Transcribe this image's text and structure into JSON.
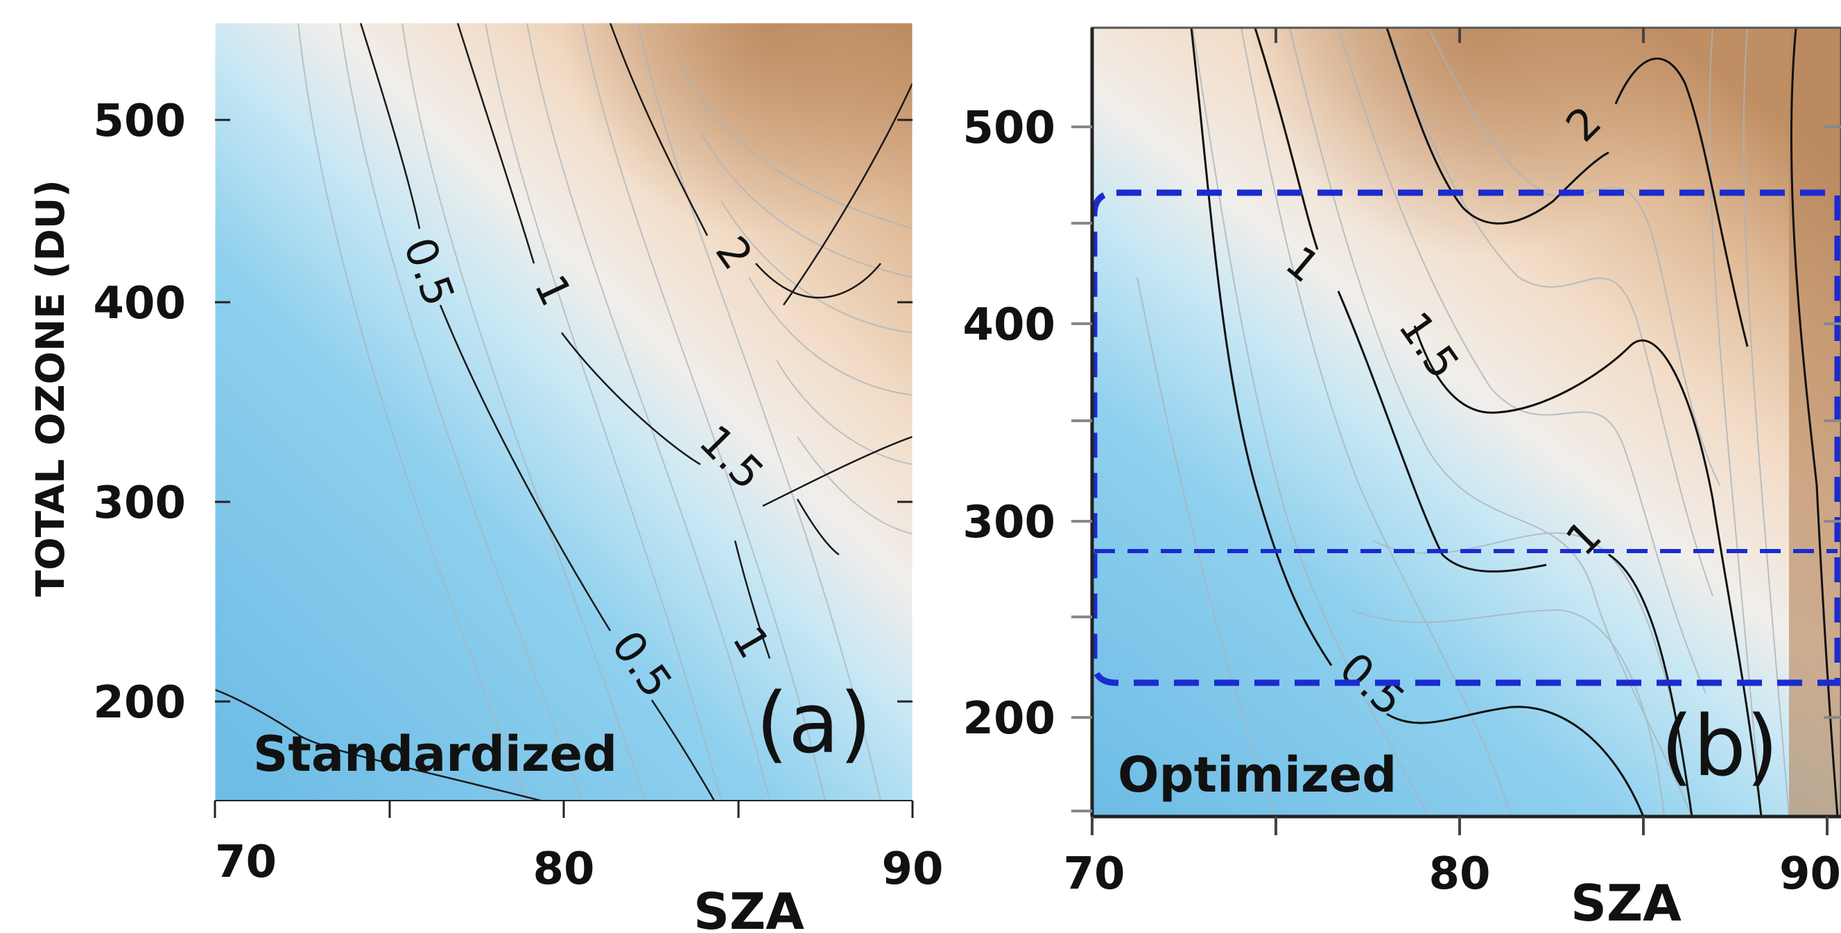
{
  "chart_data": [
    {
      "type": "heatmap",
      "panel_label": "(a)",
      "annotation": "Standardized",
      "xlabel": "SZA",
      "ylabel": "TOTAL OZONE (DU)",
      "xlim": [
        70,
        90
      ],
      "ylim": [
        150,
        540
      ],
      "x_ticks": [
        70,
        80,
        90
      ],
      "y_ticks": [
        200,
        300,
        400,
        500
      ],
      "contour_labels": [
        "0.5",
        "1",
        "2",
        "1.5",
        "0.5",
        "1"
      ],
      "colormap": [
        "#6fbde6",
        "#8fd0ee",
        "#c7e7f4",
        "#f1eeea",
        "#f2dcc7",
        "#e0bb98",
        "#c08e63"
      ]
    },
    {
      "type": "heatmap",
      "panel_label": "(b)",
      "annotation": "Optimized",
      "xlabel": "SZA",
      "ylabel": "",
      "xlim": [
        70,
        90
      ],
      "ylim": [
        150,
        550
      ],
      "x_ticks": [
        70,
        80,
        90
      ],
      "y_ticks": [
        200,
        300,
        400,
        500
      ],
      "contour_labels": [
        "2",
        "1",
        "1.5",
        "1",
        "0.5"
      ],
      "highlight_box": {
        "sza": [
          70,
          90
        ],
        "ozone": [
          218,
          465
        ],
        "divider_ozone": 300,
        "color": "#1a2bd0"
      },
      "colormap": [
        "#6fbde6",
        "#8fd0ee",
        "#c7e7f4",
        "#f1eeea",
        "#f2dcc7",
        "#e0bb98",
        "#c08e63"
      ]
    }
  ]
}
